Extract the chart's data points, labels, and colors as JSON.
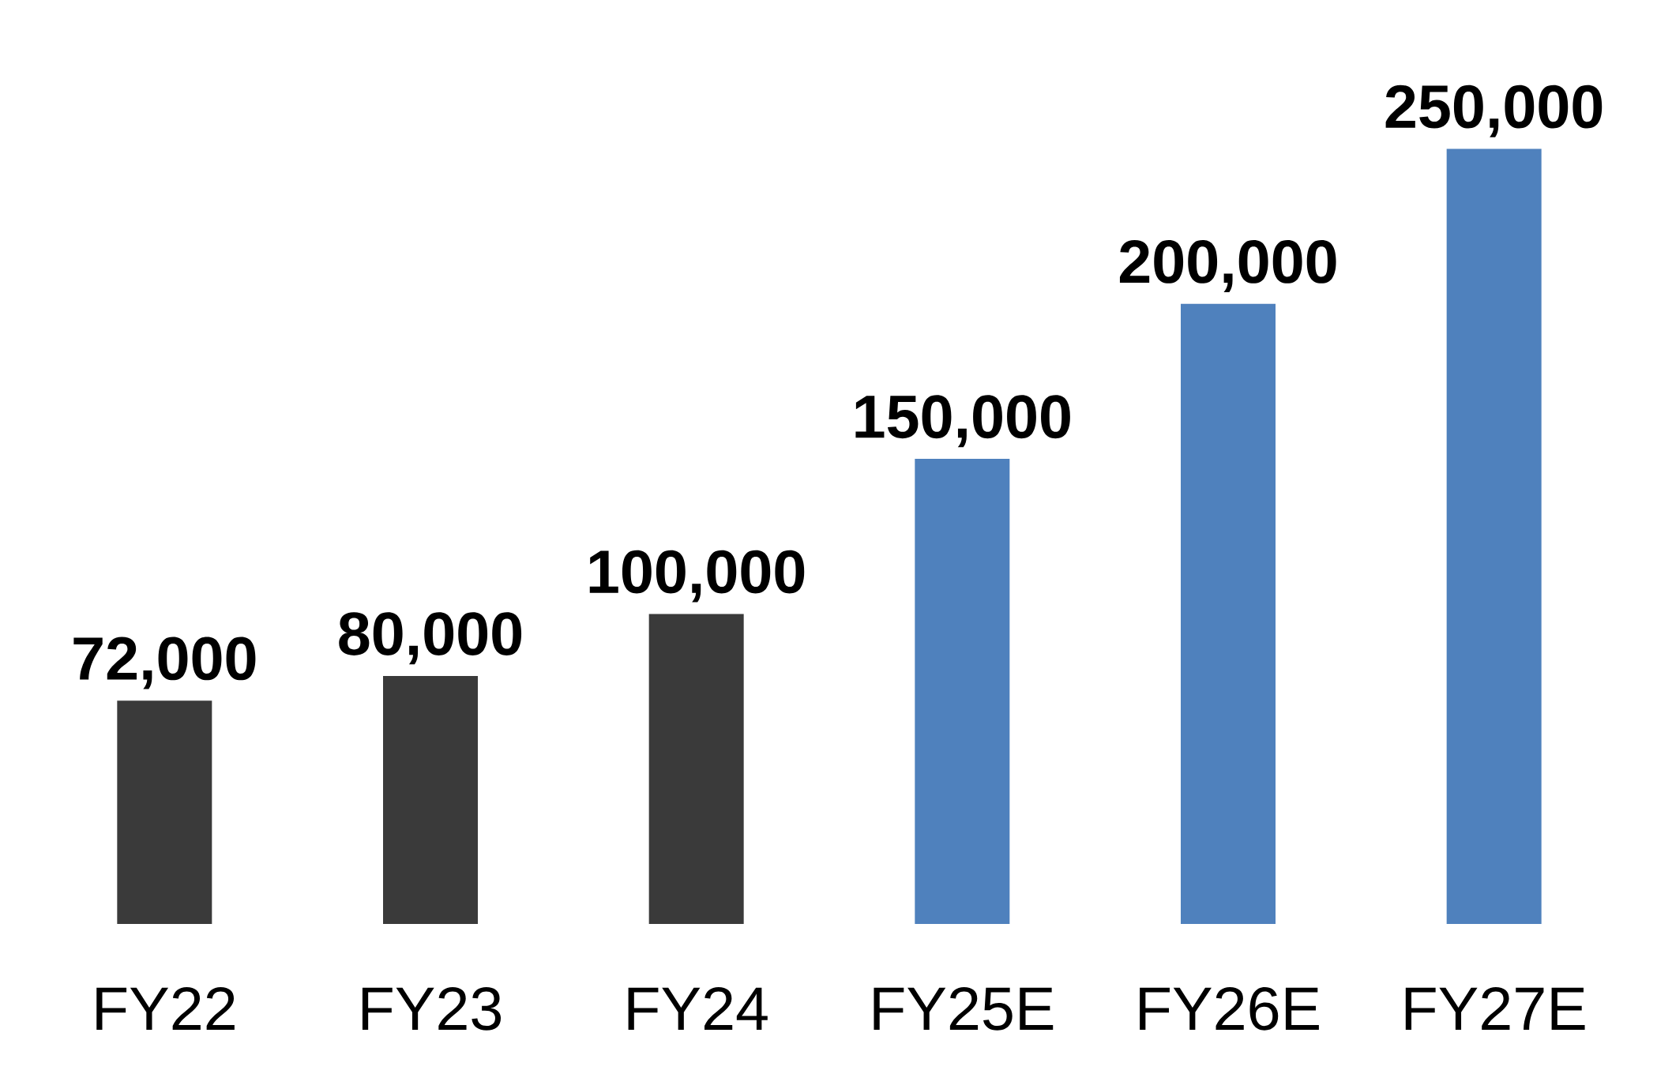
{
  "chart_data": {
    "type": "bar",
    "categories": [
      "FY22",
      "FY23",
      "FY24",
      "FY25E",
      "FY26E",
      "FY27E"
    ],
    "values": [
      72000,
      80000,
      100000,
      150000,
      200000,
      250000
    ],
    "colors": [
      "#3a3a3a",
      "#3a3a3a",
      "#3a3a3a",
      "#4f81bd",
      "#4f81bd",
      "#4f81bd"
    ],
    "value_labels": [
      "72,000",
      "80,000",
      "100,000",
      "150,000",
      "200,000",
      "250,000"
    ]
  }
}
